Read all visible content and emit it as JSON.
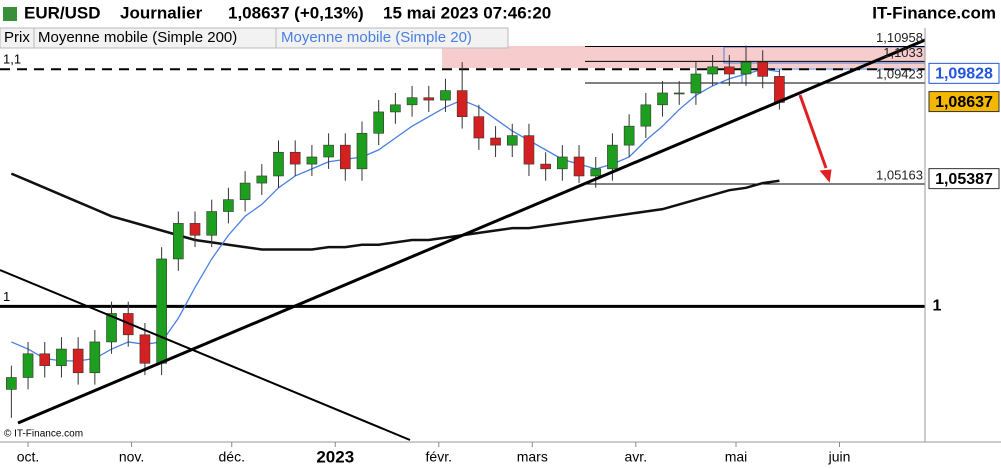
{
  "header": {
    "symbol": "EUR/USD",
    "period": "Journalier",
    "quote": "1,08637 (+0,13%)",
    "datetime": "15 mai 2023 07:46:20",
    "site": "IT-Finance.com"
  },
  "legend": [
    "Prix",
    "Moyenne mobile (Simple 200)",
    "Moyenne mobile (Simple 20)"
  ],
  "copyright": "© IT-Finance.com",
  "chart_data": {
    "type": "candlestick",
    "x": [
      -5,
      0,
      5,
      10,
      15,
      20,
      25,
      30,
      35,
      40,
      45,
      50,
      55,
      60,
      65,
      70,
      75,
      80,
      85,
      90,
      95,
      100,
      105,
      110,
      115,
      120,
      125,
      130,
      135,
      140,
      145,
      150,
      155,
      160,
      165,
      170,
      175,
      180,
      185,
      190,
      195,
      200,
      205,
      210,
      215,
      220,
      225
    ],
    "open": [
      0.965,
      0.97,
      0.98,
      0.975,
      0.982,
      0.972,
      0.985,
      0.997,
      0.988,
      0.976,
      1.02,
      1.035,
      1.03,
      1.04,
      1.045,
      1.052,
      1.055,
      1.065,
      1.06,
      1.063,
      1.068,
      1.058,
      1.073,
      1.082,
      1.085,
      1.088,
      1.087,
      1.091,
      1.08,
      1.071,
      1.068,
      1.072,
      1.06,
      1.058,
      1.063,
      1.055,
      1.058,
      1.068,
      1.076,
      1.085,
      1.09,
      1.09,
      1.098,
      1.101,
      1.098,
      1.103,
      1.097
    ],
    "high": [
      0.975,
      0.985,
      0.985,
      0.987,
      0.987,
      0.99,
      1.002,
      1.002,
      0.993,
      1.025,
      1.04,
      1.04,
      1.045,
      1.05,
      1.057,
      1.06,
      1.07,
      1.07,
      1.068,
      1.073,
      1.073,
      1.078,
      1.087,
      1.09,
      1.093,
      1.093,
      1.096,
      1.103,
      1.085,
      1.076,
      1.077,
      1.077,
      1.065,
      1.068,
      1.068,
      1.063,
      1.073,
      1.081,
      1.09,
      1.095,
      1.095,
      1.103,
      1.106,
      1.106,
      1.11,
      1.108,
      1.1
    ],
    "low": [
      0.953,
      0.965,
      0.97,
      0.97,
      0.967,
      0.967,
      0.98,
      0.983,
      0.971,
      0.971,
      1.015,
      1.025,
      1.025,
      1.035,
      1.04,
      1.047,
      1.05,
      1.055,
      1.055,
      1.058,
      1.053,
      1.053,
      1.068,
      1.077,
      1.08,
      1.082,
      1.082,
      1.075,
      1.066,
      1.063,
      1.063,
      1.055,
      1.053,
      1.053,
      1.052,
      1.05,
      1.053,
      1.063,
      1.071,
      1.08,
      1.085,
      1.085,
      1.093,
      1.093,
      1.093,
      1.092,
      1.083
    ],
    "close": [
      0.97,
      0.98,
      0.975,
      0.982,
      0.972,
      0.985,
      0.997,
      0.988,
      0.976,
      1.02,
      1.035,
      1.03,
      1.04,
      1.045,
      1.052,
      1.055,
      1.065,
      1.06,
      1.063,
      1.068,
      1.058,
      1.073,
      1.082,
      1.085,
      1.088,
      1.087,
      1.091,
      1.08,
      1.071,
      1.068,
      1.072,
      1.06,
      1.058,
      1.063,
      1.055,
      1.058,
      1.068,
      1.076,
      1.085,
      1.09,
      1.09,
      1.098,
      1.101,
      1.098,
      1.103,
      1.097,
      1.086
    ],
    "up_color": "#1e9e1e",
    "down_color": "#d42020",
    "series": [
      {
        "name": "Moyenne mobile (Simple 200)",
        "color": "#111111",
        "values": [
          1.056,
          1.053,
          1.05,
          1.047,
          1.044,
          1.041,
          1.038,
          1.036,
          1.034,
          1.032,
          1.03,
          1.028,
          1.027,
          1.026,
          1.025,
          1.024,
          1.024,
          1.024,
          1.024,
          1.025,
          1.025,
          1.026,
          1.026,
          1.027,
          1.028,
          1.028,
          1.029,
          1.03,
          1.031,
          1.032,
          1.033,
          1.033,
          1.034,
          1.035,
          1.036,
          1.037,
          1.038,
          1.039,
          1.04,
          1.041,
          1.043,
          1.045,
          1.047,
          1.049,
          1.05,
          1.052,
          1.053
        ]
      },
      {
        "name": "Moyenne mobile (Simple 20)",
        "color": "#4a7fe0",
        "values": [
          0.985,
          0.982,
          0.978,
          0.977,
          0.977,
          0.978,
          0.982,
          0.985,
          0.984,
          0.985,
          0.995,
          1.008,
          1.02,
          1.03,
          1.038,
          1.043,
          1.05,
          1.055,
          1.058,
          1.061,
          1.062,
          1.063,
          1.066,
          1.071,
          1.076,
          1.08,
          1.084,
          1.087,
          1.084,
          1.079,
          1.074,
          1.07,
          1.066,
          1.062,
          1.06,
          1.058,
          1.06,
          1.063,
          1.07,
          1.076,
          1.083,
          1.089,
          1.093,
          1.096,
          1.098,
          1.1,
          1.099
        ]
      }
    ],
    "xlim": [
      -8.4,
      268.6
    ],
    "xticks": [
      {
        "value": 0,
        "label": "oct."
      },
      {
        "value": 31,
        "label": "nov."
      },
      {
        "value": 61,
        "label": "déc."
      },
      {
        "value": 92,
        "label": "2023"
      },
      {
        "value": 123,
        "label": "févr."
      },
      {
        "value": 151,
        "label": "mars"
      },
      {
        "value": 182,
        "label": "avr."
      },
      {
        "value": 212,
        "label": "mai"
      },
      {
        "value": 243,
        "label": "juin"
      }
    ],
    "ylim": [
      0.9428,
      1.1174
    ],
    "yticks": [
      {
        "value": 1,
        "label": "1"
      },
      {
        "value": 1.1,
        "label": "1,1"
      }
    ],
    "levels": [
      {
        "value": 1.10958,
        "label": "1,10958"
      },
      {
        "value": 1.1033,
        "label": "1,1033"
      },
      {
        "value": 1.09423,
        "label": "1,09423"
      },
      {
        "value": 1.05163,
        "label": "1,05163"
      }
    ],
    "price_tags": [
      {
        "value": 1.09828,
        "label": "1,09828",
        "color": "#2255dd"
      },
      {
        "value": 1.08637,
        "label": "1,08637",
        "color": "#f5b800"
      },
      {
        "value": 1.05387,
        "label": "1,05387",
        "color": "#ffffff"
      }
    ]
  }
}
